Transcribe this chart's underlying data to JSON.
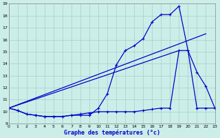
{
  "title": "Graphe des températures (°c)",
  "bg_color": "#cceee8",
  "grid_color": "#aad4cc",
  "line_color": "#0000cc",
  "xlim": [
    0,
    23
  ],
  "ylim": [
    9,
    19
  ],
  "xticks": [
    0,
    1,
    2,
    3,
    4,
    5,
    6,
    7,
    8,
    9,
    10,
    11,
    12,
    13,
    14,
    15,
    16,
    17,
    18,
    19,
    20,
    21,
    22,
    23
  ],
  "yticks": [
    9,
    10,
    11,
    12,
    13,
    14,
    15,
    16,
    17,
    18,
    19
  ],
  "line1_x": [
    0,
    1,
    2,
    3,
    4,
    5,
    6,
    7,
    8,
    9,
    10,
    11,
    12,
    13,
    14,
    15,
    16,
    17,
    18,
    19,
    20,
    21,
    22,
    23
  ],
  "line1_y": [
    10.3,
    10.1,
    9.8,
    9.7,
    9.6,
    9.6,
    9.6,
    9.7,
    9.7,
    9.7,
    10.3,
    11.5,
    13.9,
    15.1,
    15.5,
    16.1,
    17.5,
    18.1,
    18.1,
    18.8,
    15.1,
    13.3,
    12.1,
    10.3
  ],
  "line2_x": [
    0,
    1,
    2,
    3,
    4,
    5,
    6,
    7,
    8,
    9,
    10,
    11,
    12,
    13,
    14,
    15,
    16,
    17,
    18,
    19,
    20,
    21,
    22,
    23
  ],
  "line2_y": [
    10.3,
    10.1,
    9.8,
    9.7,
    9.6,
    9.6,
    9.6,
    9.7,
    9.8,
    9.9,
    10.0,
    10.0,
    10.0,
    10.0,
    10.0,
    10.1,
    10.2,
    10.3,
    10.3,
    15.1,
    15.1,
    10.3,
    10.3,
    10.3
  ],
  "line3_x": [
    0,
    22
  ],
  "line3_y": [
    10.3,
    16.5
  ],
  "line4_x": [
    0,
    19
  ],
  "line4_y": [
    10.3,
    15.1
  ]
}
